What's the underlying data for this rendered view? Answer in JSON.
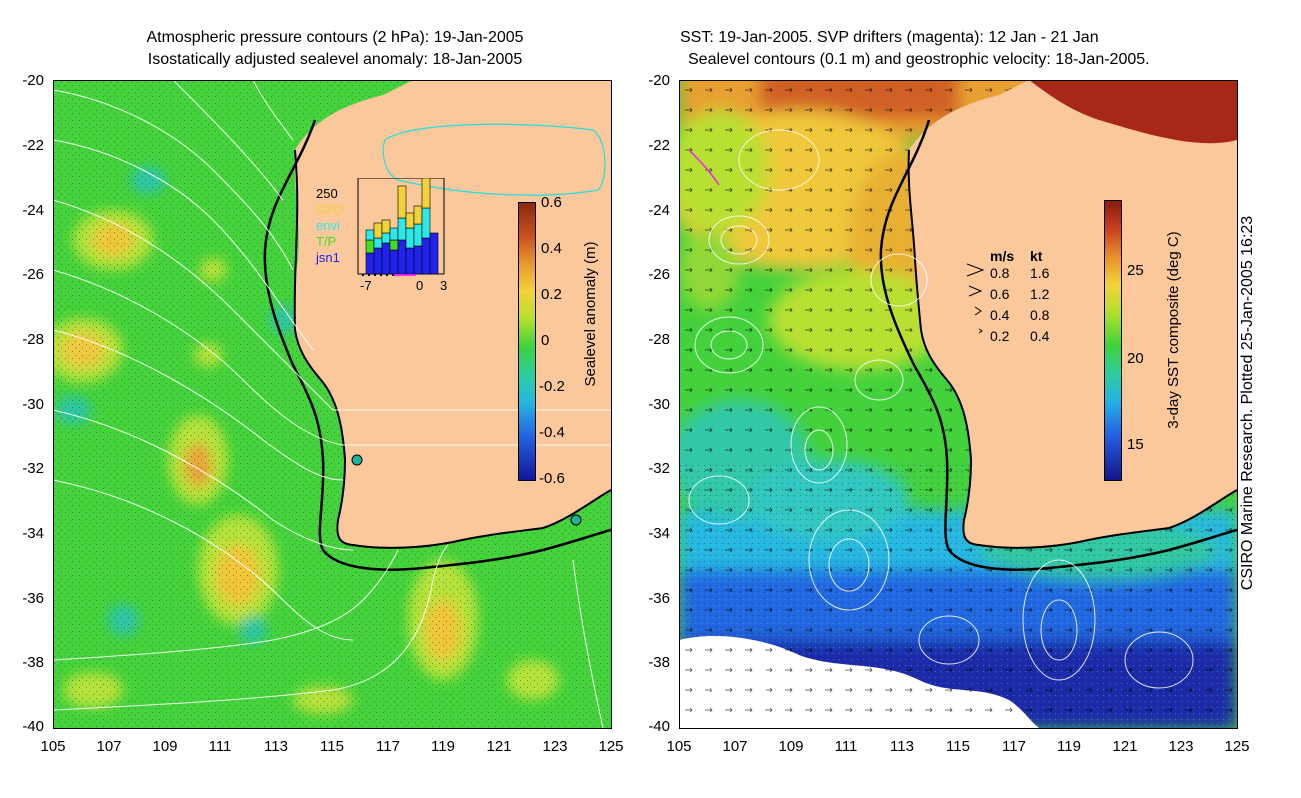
{
  "left_panel": {
    "title_line1": "Atmospheric pressure contours (2 hPa): 19-Jan-2005",
    "title_line2": "Isostatically adjusted sealevel anomaly: 18-Jan-2005",
    "y_ticks": [
      "-20",
      "-22",
      "-24",
      "-26",
      "-28",
      "-30",
      "-32",
      "-34",
      "-36",
      "-38",
      "-40"
    ],
    "x_ticks": [
      "105",
      "107",
      "109",
      "111",
      "113",
      "115",
      "117",
      "119",
      "121",
      "123",
      "125"
    ],
    "colorbar": {
      "label": "Sealevel anomaly (m)",
      "ticks": [
        "0.6",
        "0.4",
        "0.2",
        "0",
        "-0.2",
        "-0.4",
        "-0.6"
      ]
    },
    "inset": {
      "top_value": "250",
      "legend": [
        {
          "label": "GFO",
          "color": "#f2d23a"
        },
        {
          "label": "envi",
          "color": "#2ee8e8"
        },
        {
          "label": "T/P",
          "color": "#44dd22"
        },
        {
          "label": "jsn1",
          "color": "#2222ee"
        }
      ],
      "x_ticks": [
        "-7",
        "0",
        "3"
      ]
    }
  },
  "right_panel": {
    "title_line1": "SST: 19-Jan-2005. SVP drifters (magenta): 12 Jan - 21 Jan",
    "title_line2": "Sealevel contours (0.1 m) and geostrophic velocity: 18-Jan-2005.",
    "y_ticks": [
      "-20",
      "-22",
      "-24",
      "-26",
      "-28",
      "-30",
      "-32",
      "-34",
      "-36",
      "-38",
      "-40"
    ],
    "x_ticks": [
      "105",
      "107",
      "109",
      "111",
      "113",
      "115",
      "117",
      "119",
      "121",
      "123",
      "125"
    ],
    "colorbar": {
      "label": "3-day SST composite (deg C)",
      "ticks": [
        "25",
        "20",
        "15"
      ]
    },
    "speed_legend": {
      "header_ms": "m/s",
      "header_kt": "kt",
      "rows": [
        {
          "ms": "0.8",
          "kt": "1.6"
        },
        {
          "ms": "0.6",
          "kt": "1.2"
        },
        {
          "ms": "0.4",
          "kt": "0.8"
        },
        {
          "ms": "0.2",
          "kt": "0.4"
        }
      ]
    }
  },
  "credit": "CSIRO Marine Research. Plotted 25-Jan-2005 16:23",
  "colors": {
    "land": "#fbc89c",
    "ocean_green": "#3fd23a",
    "coast": "#000000",
    "contour": "#ffffff"
  }
}
